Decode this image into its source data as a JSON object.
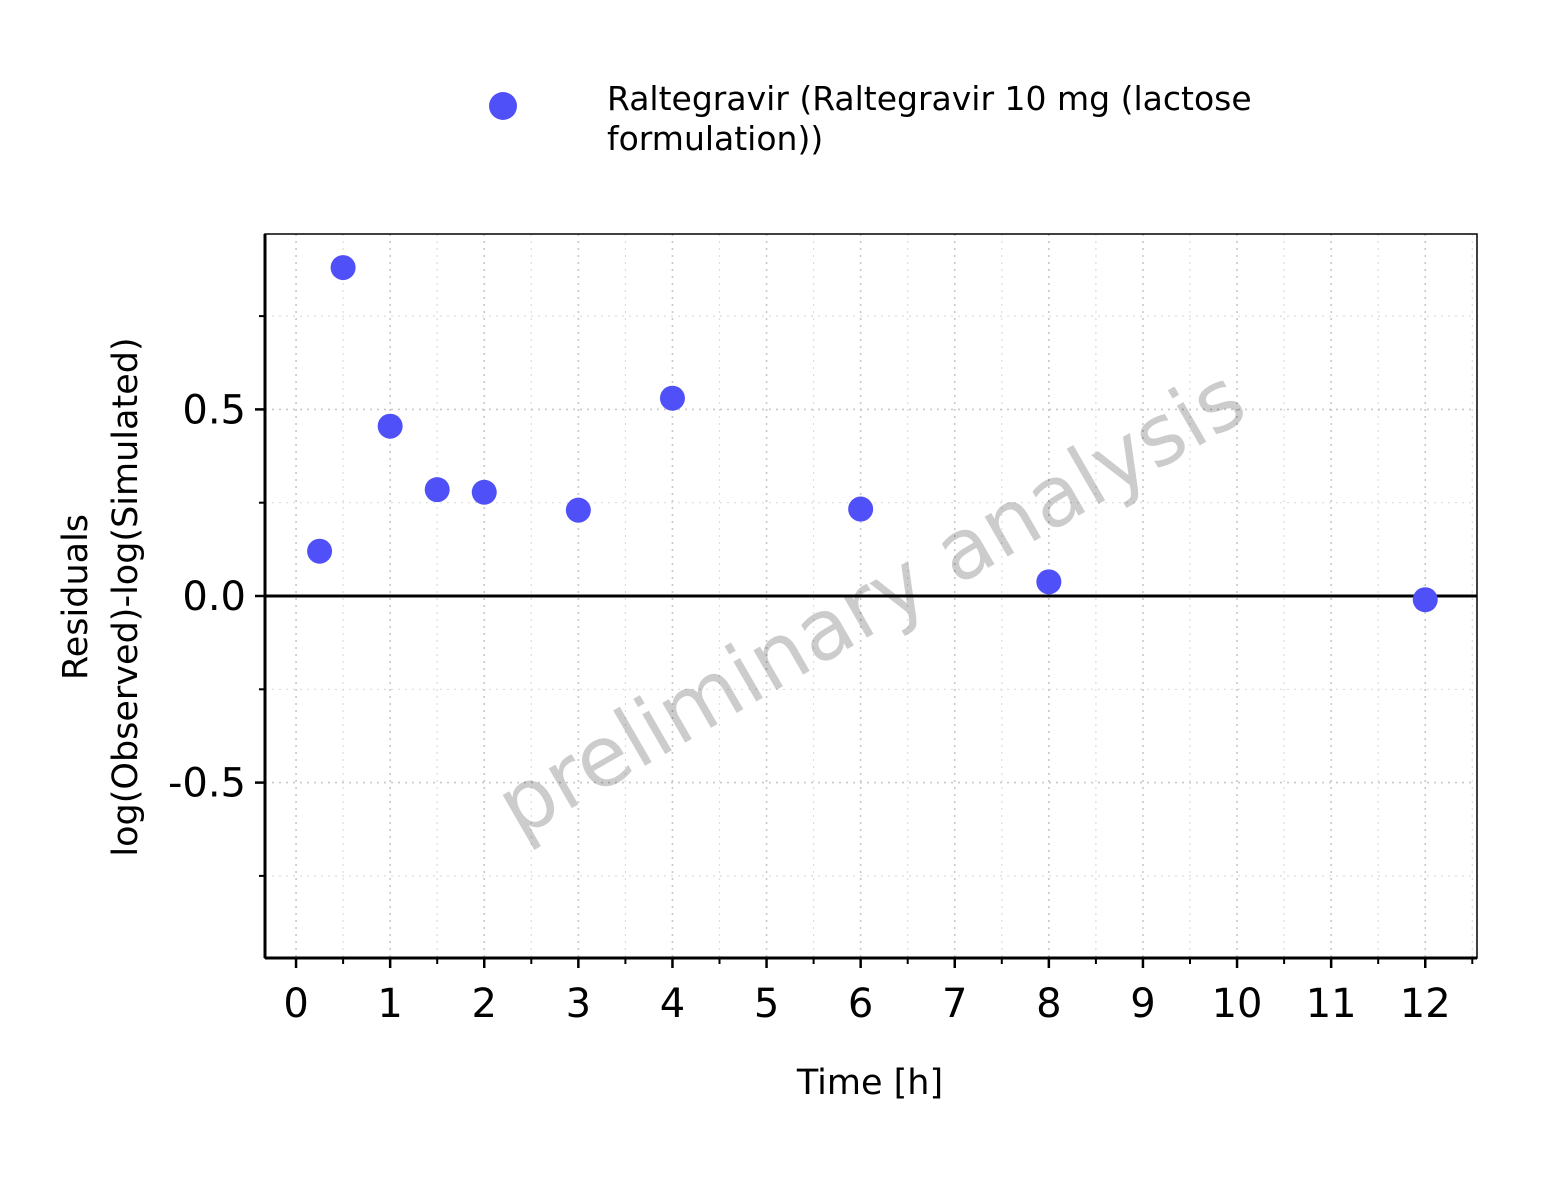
{
  "chart_data": {
    "type": "scatter",
    "title": "",
    "xlabel": "Time [h]",
    "ylabel_lines": [
      "Residuals",
      "log(Observed)-log(Simulated)"
    ],
    "xlim": [
      -0.33,
      12.55
    ],
    "ylim": [
      -0.97,
      0.97
    ],
    "x_ticks": [
      0,
      1,
      2,
      3,
      4,
      5,
      6,
      7,
      8,
      9,
      10,
      11,
      12
    ],
    "y_ticks": [
      -0.5,
      0.0,
      0.5
    ],
    "y_tick_labels": [
      "-0.5",
      "0.0",
      "0.5"
    ],
    "x_minor_ticks": [
      0.5,
      1.5,
      2.5,
      3.5,
      4.5,
      5.5,
      6.5,
      7.5,
      8.5,
      9.5,
      10.5,
      11.5,
      12.5
    ],
    "y_minor_ticks": [
      -0.75,
      -0.25,
      0.25,
      0.75
    ],
    "grid": true,
    "reference_line_y": 0,
    "legend_position": "top",
    "watermark": "preliminary analysis",
    "series": [
      {
        "name": "Raltegravir (Raltegravir 10 mg (lactose formulation))",
        "legend_lines": [
          "Raltegravir (Raltegravir 10 mg (lactose",
          "formulation))"
        ],
        "color": "#5050f8",
        "x": [
          0.25,
          0.5,
          1.0,
          1.5,
          2.0,
          3.0,
          4.0,
          6.0,
          8.0,
          12.0
        ],
        "y": [
          0.12,
          0.88,
          0.455,
          0.285,
          0.278,
          0.23,
          0.53,
          0.233,
          0.038,
          -0.01
        ]
      }
    ]
  }
}
